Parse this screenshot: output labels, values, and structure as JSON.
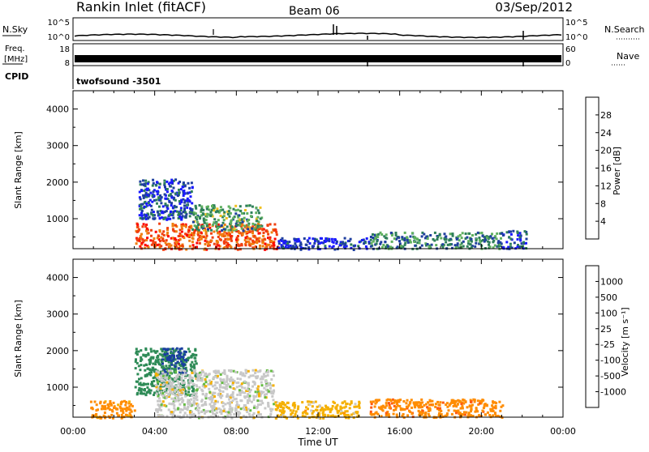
{
  "header": {
    "station": "Rankin Inlet (fitACF)",
    "beam": "Beam 06",
    "date": "03/Sep/2012"
  },
  "noise_panel": {
    "left_label": "N.Sky",
    "right_label": "N.Search",
    "left_ticks": [
      "10^5",
      "10^0"
    ],
    "right_ticks": [
      "10^5",
      "10^0"
    ]
  },
  "freq_panel": {
    "left_label_1": "Freq.",
    "left_label_2": "[MHz]",
    "right_label": "Nave",
    "left_ticks": [
      "18",
      "8"
    ],
    "right_ticks": [
      "60",
      "0"
    ]
  },
  "cpid": {
    "label": "CPID",
    "program": "twofsound -3501"
  },
  "colors": {
    "power_scale": [
      "#1a1aff",
      "#1f3f9f",
      "#2e7f5a",
      "#5fb05f",
      "#f0c020",
      "#f07d10",
      "#f04010",
      "#ff0000"
    ],
    "velocity_scale": [
      "#ff1010",
      "#ff5a10",
      "#ff8c00",
      "#f5b000",
      "#c8c8c8",
      "#66bb44",
      "#2e8b57",
      "#1a3fa0",
      "#1a1aff"
    ]
  },
  "chart_data": [
    {
      "type": "heatmap",
      "panel": "power",
      "xlabel": "",
      "ylabel": "Slant Range [km]",
      "x_ticks": [
        "00:00",
        "04:00",
        "08:00",
        "12:00",
        "16:00",
        "20:00",
        "00:00"
      ],
      "x_range_hours": [
        0,
        24
      ],
      "y_ticks": [
        1000,
        2000,
        3000,
        4000
      ],
      "ylim": [
        180,
        4500
      ],
      "colorbar_label": "Power [dB]",
      "colorbar_ticks": [
        "4",
        "8",
        "12",
        "16",
        "20",
        "24",
        "28"
      ],
      "regions": [
        {
          "t0": 3.0,
          "t1": 10.0,
          "r0": 180,
          "r1": 900,
          "v": 25
        },
        {
          "t0": 3.2,
          "t1": 5.8,
          "r0": 1000,
          "r1": 2100,
          "v": 6
        },
        {
          "t0": 5.8,
          "t1": 9.2,
          "r0": 700,
          "r1": 1400,
          "v": 12
        },
        {
          "t0": 10.0,
          "t1": 14.5,
          "r0": 180,
          "r1": 500,
          "v": 4
        },
        {
          "t0": 14.5,
          "t1": 21.0,
          "r0": 200,
          "r1": 650,
          "v": 10
        },
        {
          "t0": 21.0,
          "t1": 22.2,
          "r0": 200,
          "r1": 700,
          "v": 6
        }
      ]
    },
    {
      "type": "heatmap",
      "panel": "velocity",
      "xlabel": "Time UT",
      "ylabel": "Slant Range [km]",
      "x_ticks": [
        "00:00",
        "04:00",
        "08:00",
        "12:00",
        "16:00",
        "20:00",
        "00:00"
      ],
      "x_range_hours": [
        0,
        24
      ],
      "y_ticks": [
        1000,
        2000,
        3000,
        4000
      ],
      "ylim": [
        180,
        4500
      ],
      "colorbar_label": "Velocity [m s⁻¹]",
      "colorbar_ticks": [
        "-1000",
        "-500",
        "-100",
        "-25",
        "25",
        "100",
        "500",
        "1000"
      ],
      "regions": [
        {
          "t0": 3.0,
          "t1": 6.0,
          "r0": 800,
          "r1": 2100,
          "v": 200
        },
        {
          "t0": 4.3,
          "t1": 5.5,
          "r0": 1400,
          "r1": 2100,
          "v": 700
        },
        {
          "t0": 4.0,
          "t1": 9.8,
          "r0": 180,
          "r1": 1500,
          "v": 0
        },
        {
          "t0": 0.8,
          "t1": 3.0,
          "r0": 180,
          "r1": 650,
          "v": -150
        },
        {
          "t0": 9.8,
          "t1": 14.0,
          "r0": 180,
          "r1": 650,
          "v": -60
        },
        {
          "t0": 14.5,
          "t1": 21.0,
          "r0": 200,
          "r1": 700,
          "v": -400
        }
      ]
    }
  ]
}
